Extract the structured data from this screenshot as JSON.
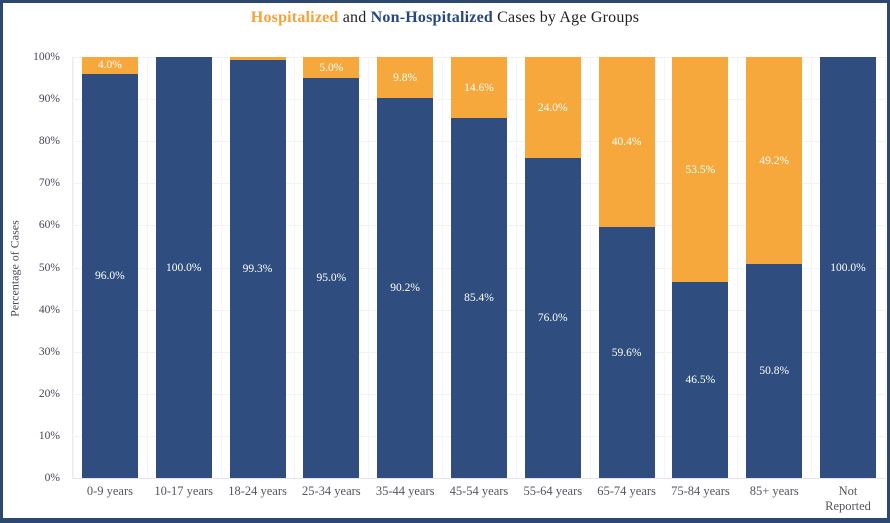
{
  "window": {
    "border_color": "#2c4770"
  },
  "title": {
    "part_hospitalized": "Hospitalized",
    "part_and": " and ",
    "part_non_hospitalized": "Non-Hospitalized",
    "part_rest": " Cases by Age Groups",
    "hospitalized_color": "#f2a339",
    "non_hospitalized_color": "#27477f"
  },
  "colors": {
    "hospitalized": "#f6a83c",
    "non_hospitalized": "#2f4d7e"
  },
  "y_axis": {
    "label": "Percentage of Cases",
    "ticks": [
      "100%",
      "90%",
      "80%",
      "70%",
      "60%",
      "50%",
      "40%",
      "30%",
      "20%",
      "10%",
      "0%"
    ]
  },
  "chart_data": {
    "type": "bar",
    "stacked": true,
    "title": "Hospitalized and Non-Hospitalized Cases by Age Groups",
    "xlabel": "",
    "ylabel": "Percentage of Cases",
    "ylim": [
      0,
      100
    ],
    "grid": true,
    "legend_position": "none",
    "categories": [
      "0-9 years",
      "10-17 years",
      "18-24 years",
      "25-34 years",
      "35-44 years",
      "45-54 years",
      "55-64 years",
      "65-74 years",
      "75-84 years",
      "85+ years",
      "Not Reported"
    ],
    "series": [
      {
        "name": "Non-Hospitalized",
        "color": "#2f4d7e",
        "values": [
          96.0,
          100.0,
          99.3,
          95.0,
          90.2,
          85.4,
          76.0,
          59.6,
          46.5,
          50.8,
          100.0
        ],
        "labels": [
          "96.0%",
          "100.0%",
          "99.3%",
          "95.0%",
          "90.2%",
          "85.4%",
          "76.0%",
          "59.6%",
          "46.5%",
          "50.8%",
          "100.0%"
        ]
      },
      {
        "name": "Hospitalized",
        "color": "#f6a83c",
        "values": [
          4.0,
          0.0,
          0.7,
          5.0,
          9.8,
          14.6,
          24.0,
          40.4,
          53.5,
          49.2,
          0.0
        ],
        "labels": [
          "4.0%",
          "",
          "",
          "5.0%",
          "9.8%",
          "14.6%",
          "24.0%",
          "40.4%",
          "53.5%",
          "49.2%",
          ""
        ]
      }
    ]
  }
}
